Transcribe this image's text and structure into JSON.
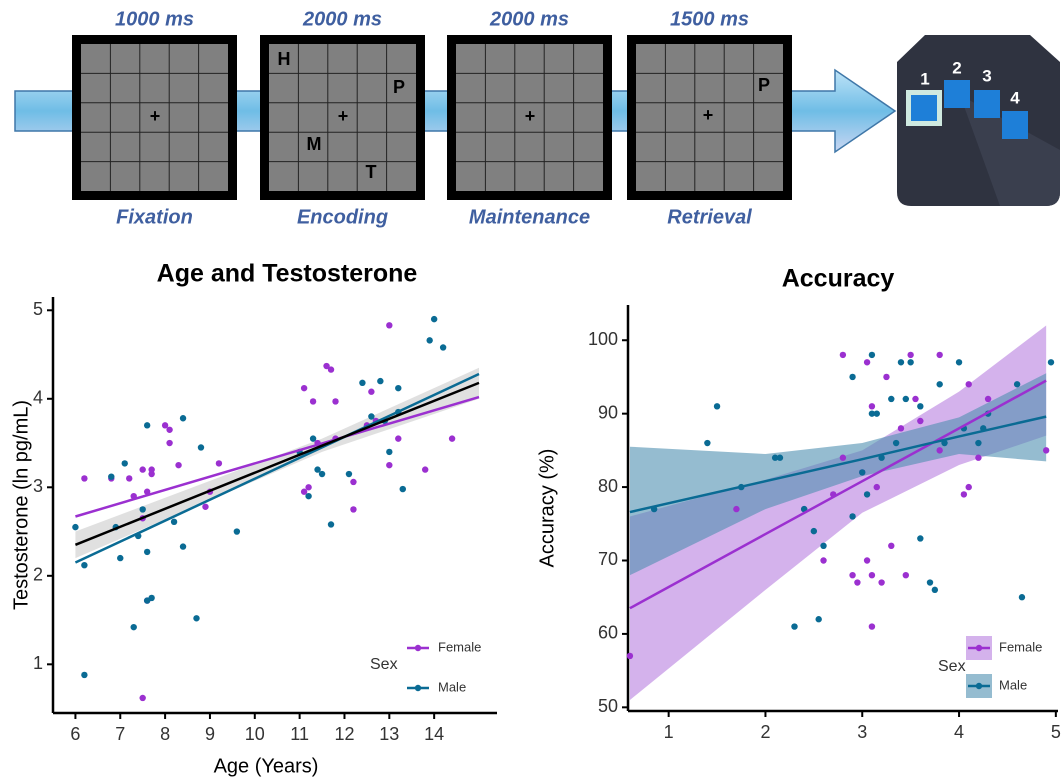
{
  "task": {
    "stages": [
      {
        "duration": "1000 ms",
        "name": "Fixation",
        "symbols": [
          "+"
        ]
      },
      {
        "duration": "2000 ms",
        "name": "Encoding",
        "symbols": [
          "+",
          "H",
          "P",
          "M",
          "T"
        ]
      },
      {
        "duration": "2000 ms",
        "name": "Maintenance",
        "symbols": [
          "+"
        ]
      },
      {
        "duration": "1500 ms",
        "name": "Retrieval",
        "symbols": [
          "+",
          "P"
        ]
      }
    ],
    "keys": [
      "1",
      "2",
      "3",
      "4"
    ]
  },
  "chart_data": [
    {
      "type": "scatter",
      "title": "Age and Testosterone",
      "x_label": "Age (Years)",
      "y_label": "Testosterone (ln pg/mL)",
      "xlim": [
        5.5,
        15
      ],
      "xticks": [
        6,
        7,
        8,
        9,
        10,
        11,
        12,
        13,
        14
      ],
      "ylim": [
        0.45,
        5.15
      ],
      "yticks": [
        1,
        2,
        3,
        4,
        5
      ],
      "legend_title": "Sex",
      "legend": "bottom-right",
      "series": [
        {
          "name": "Female",
          "color": "#9b30d0",
          "x": [
            6.2,
            6.8,
            7.2,
            7.3,
            7.5,
            7.6,
            7.5,
            7.6,
            7.5,
            7.7,
            7.7,
            8.0,
            8.1,
            8.1,
            8.3,
            9.0,
            8.9,
            9.2,
            11.1,
            11.1,
            11.2,
            11.3,
            11.4,
            11.6,
            11.7,
            11.8,
            11.8,
            12.2,
            12.2,
            12.5,
            12.6,
            12.7,
            13.0,
            13.2,
            13.0,
            13.8,
            14.4
          ],
          "values": [
            3.1,
            3.1,
            3.1,
            2.9,
            3.2,
            2.95,
            2.65,
            1.72,
            0.62,
            3.15,
            3.2,
            3.7,
            3.65,
            3.5,
            3.25,
            2.95,
            2.78,
            3.27,
            4.12,
            2.95,
            3.0,
            3.97,
            3.5,
            4.37,
            4.33,
            3.55,
            3.97,
            2.75,
            3.06,
            3.7,
            4.08,
            3.75,
            4.83,
            3.55,
            3.25,
            3.2,
            3.55
          ],
          "fit": {
            "x": [
              6,
              15
            ],
            "values": [
              2.67,
              4.02
            ]
          }
        },
        {
          "name": "Male",
          "color": "#0a6b94",
          "x": [
            6.0,
            6.2,
            6.2,
            6.8,
            6.9,
            7.0,
            7.1,
            7.3,
            7.4,
            7.5,
            7.6,
            7.6,
            7.6,
            7.7,
            8.2,
            8.4,
            8.4,
            8.7,
            8.8,
            9.6,
            11.0,
            11.2,
            11.3,
            11.4,
            11.5,
            11.7,
            12.1,
            12.4,
            12.6,
            12.8,
            12.9,
            13.0,
            13.2,
            13.2,
            13.3,
            13.9,
            14.0,
            14.2
          ],
          "values": [
            2.55,
            2.12,
            0.88,
            3.12,
            2.55,
            2.2,
            3.27,
            1.42,
            2.45,
            2.75,
            3.7,
            2.27,
            1.72,
            1.75,
            2.61,
            2.33,
            3.78,
            1.52,
            3.45,
            2.5,
            3.4,
            2.9,
            3.55,
            3.2,
            3.15,
            2.58,
            3.15,
            4.18,
            3.8,
            4.2,
            3.75,
            3.4,
            4.12,
            3.85,
            2.98,
            4.66,
            4.9,
            4.58
          ],
          "fit": {
            "x": [
              6,
              15
            ],
            "values": [
              2.15,
              4.28
            ]
          }
        }
      ],
      "overall_fit": {
        "color": "#000000",
        "x": [
          6,
          11.5,
          15
        ],
        "values": [
          2.35,
          3.47,
          4.18
        ],
        "lower": [
          2.2,
          3.4,
          4.0
        ],
        "upper": [
          2.5,
          3.55,
          4.35
        ]
      }
    },
    {
      "type": "scatter",
      "title": "Accuracy",
      "y_label": "Accuracy (%)",
      "xlim": [
        0.58,
        4.95
      ],
      "xticks": [
        1,
        2,
        3,
        4,
        5
      ],
      "ylim": [
        49.5,
        104.8
      ],
      "yticks": [
        50,
        60,
        70,
        80,
        90,
        100
      ],
      "legend_title": "Sex",
      "legend": "bottom-right",
      "series": [
        {
          "name": "Female",
          "color": "#9b30d0",
          "band_color": "#b77fe0",
          "x": [
            0.6,
            1.7,
            2.4,
            2.6,
            2.7,
            2.8,
            2.8,
            2.9,
            2.95,
            3.0,
            3.05,
            3.05,
            3.1,
            3.1,
            3.1,
            3.15,
            3.2,
            3.25,
            3.3,
            3.4,
            3.45,
            3.5,
            3.55,
            3.6,
            3.8,
            3.8,
            4.05,
            4.1,
            4.1,
            4.2,
            4.3,
            4.9
          ],
          "values": [
            57,
            77,
            77,
            70,
            79,
            84,
            98,
            68,
            67,
            82,
            97,
            70,
            68,
            61,
            91,
            80,
            67,
            95,
            72,
            88,
            68,
            98,
            92,
            89,
            98,
            85,
            79,
            94,
            80,
            84,
            92,
            85
          ],
          "fit": {
            "x": [
              0.6,
              2,
              3,
              4,
              4.9
            ],
            "values": [
              63.5,
              73.6,
              80.8,
              88.0,
              94.5
            ],
            "lower": [
              51,
              66,
              76.5,
              83,
              87
            ],
            "upper": [
              76,
              81,
              85,
              93,
              102
            ]
          }
        },
        {
          "name": "Male",
          "color": "#0a6b94",
          "band_color": "#4f8fb0",
          "x": [
            0.85,
            1.4,
            1.5,
            1.75,
            2.1,
            2.15,
            2.3,
            2.4,
            2.5,
            2.55,
            2.6,
            2.9,
            2.9,
            3.0,
            3.05,
            3.1,
            3.1,
            3.15,
            3.2,
            3.3,
            3.35,
            3.4,
            3.45,
            3.5,
            3.6,
            3.6,
            3.7,
            3.75,
            3.8,
            3.85,
            4.0,
            4.05,
            4.2,
            4.25,
            4.3,
            4.6,
            4.65,
            4.95
          ],
          "values": [
            77,
            86,
            91,
            80,
            84,
            84,
            61,
            77,
            74,
            62,
            72,
            95,
            76,
            82,
            79,
            90,
            98,
            90,
            84,
            92,
            86,
            97,
            92,
            97,
            73,
            91,
            67,
            66,
            94,
            86,
            97,
            88,
            86,
            88,
            90,
            94,
            65,
            97
          ],
          "fit": {
            "x": [
              0.6,
              2,
              3,
              4,
              4.9
            ],
            "values": [
              76.6,
              80.8,
              83.8,
              86.9,
              89.6
            ],
            "lower": [
              68,
              77,
              81.5,
              84.5,
              83.5
            ],
            "upper": [
              85.5,
              84.5,
              86,
              89.5,
              95.5
            ]
          }
        }
      ]
    }
  ]
}
